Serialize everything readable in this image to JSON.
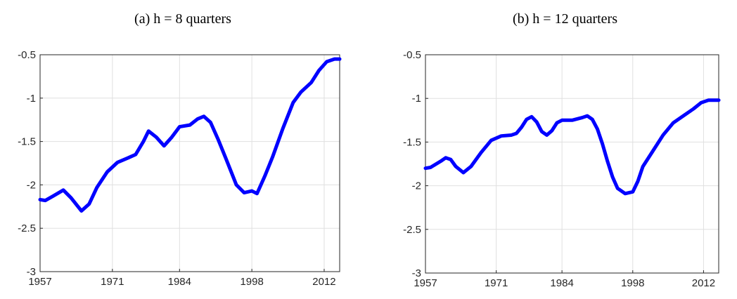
{
  "chart_data": [
    {
      "type": "line",
      "title": "(a) h = 8 quarters",
      "x": [
        1957,
        1958,
        1959.5,
        1961.5,
        1963,
        1965,
        1966.5,
        1968,
        1970,
        1972,
        1974,
        1975.5,
        1977,
        1978,
        1979.5,
        1981,
        1982.5,
        1984,
        1986,
        1987.5,
        1988.7,
        1990,
        1991.5,
        1993,
        1995,
        1996.5,
        1998,
        1999,
        2000.5,
        2002,
        2004,
        2006,
        2007.5,
        2009.5,
        2011,
        2012.5,
        2014,
        2015
      ],
      "series": [
        {
          "color": "#0000ff",
          "values": [
            -2.17,
            -2.18,
            -2.13,
            -2.06,
            -2.15,
            -2.3,
            -2.22,
            -2.03,
            -1.85,
            -1.74,
            -1.69,
            -1.65,
            -1.5,
            -1.38,
            -1.45,
            -1.55,
            -1.45,
            -1.33,
            -1.31,
            -1.24,
            -1.21,
            -1.28,
            -1.48,
            -1.7,
            -2.0,
            -2.09,
            -2.07,
            -2.1,
            -1.9,
            -1.68,
            -1.35,
            -1.05,
            -0.93,
            -0.82,
            -0.68,
            -0.58,
            -0.55,
            -0.55
          ]
        }
      ],
      "xlim": [
        1957,
        2015
      ],
      "xticks": [
        1957,
        1971,
        1984,
        1998,
        2012
      ],
      "ylim": [
        -3,
        -0.5
      ],
      "yticks": [
        -3,
        -2.5,
        -2,
        -1.5,
        -1,
        -0.5
      ],
      "grid": true
    },
    {
      "type": "line",
      "title": "(b) h = 12 quarters",
      "x": [
        1957,
        1958,
        1960,
        1961,
        1962,
        1963,
        1964.5,
        1966,
        1968,
        1970,
        1972,
        1974,
        1975,
        1976,
        1977,
        1978,
        1979,
        1980,
        1981,
        1982,
        1983,
        1984,
        1986,
        1988,
        1989,
        1990,
        1991,
        1992,
        1993,
        1994,
        1995,
        1996.5,
        1998,
        1999,
        2000,
        2002,
        2004,
        2006,
        2008,
        2010,
        2011.5,
        2013,
        2015
      ],
      "series": [
        {
          "color": "#0000ff",
          "values": [
            -1.8,
            -1.79,
            -1.72,
            -1.68,
            -1.7,
            -1.78,
            -1.85,
            -1.78,
            -1.62,
            -1.48,
            -1.43,
            -1.42,
            -1.4,
            -1.33,
            -1.24,
            -1.21,
            -1.27,
            -1.38,
            -1.42,
            -1.37,
            -1.28,
            -1.25,
            -1.25,
            -1.22,
            -1.2,
            -1.24,
            -1.35,
            -1.52,
            -1.72,
            -1.9,
            -2.03,
            -2.09,
            -2.07,
            -1.95,
            -1.78,
            -1.6,
            -1.42,
            -1.28,
            -1.2,
            -1.12,
            -1.05,
            -1.02,
            -1.02
          ]
        }
      ],
      "xlim": [
        1957,
        2015
      ],
      "xticks": [
        1957,
        1971,
        1984,
        1998,
        2012
      ],
      "ylim": [
        -3,
        -0.5
      ],
      "yticks": [
        -3,
        -2.5,
        -2,
        -1.5,
        -1,
        -0.5
      ],
      "grid": true
    }
  ]
}
